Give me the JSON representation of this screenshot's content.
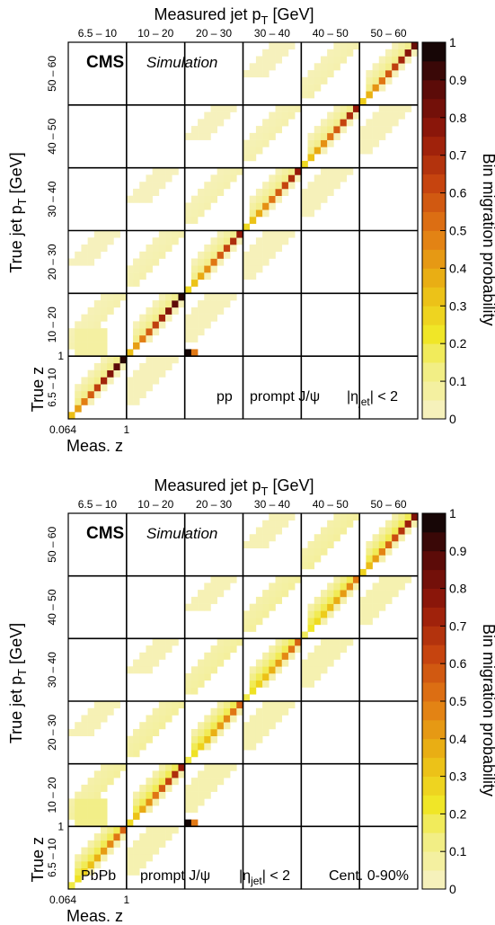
{
  "chart_data": [
    {
      "type": "heatmap",
      "xlabel": "Measured jet p",
      "xlabel_sub": "T",
      "xlabel_unit": " [GeV]",
      "ylabel": "True jet p",
      "ylabel_sub": "T",
      "ylabel_unit": " [GeV]",
      "pt_bins": [
        "6.5 – 10",
        "10 – 20",
        "20 – 30",
        "30 – 40",
        "40 – 50",
        "50 – 60"
      ],
      "z_tick_min": "0.064",
      "z_tick_one": "1",
      "z_tick_one_y": "1",
      "sub_xlabel": "Meas. z",
      "sub_ylabel": "True z",
      "colorbar_label": "Bin migration probability",
      "colorbar_ticks": [
        "0",
        "0.1",
        "0.2",
        "0.3",
        "0.4",
        "0.5",
        "0.6",
        "0.7",
        "0.8",
        "0.9",
        "1"
      ],
      "colorbar_range": [
        0,
        1
      ],
      "cms_label": "CMS",
      "sim_label": "Simulation",
      "legend_collision": "pp",
      "legend_particle": "prompt J/ψ",
      "legend_eta_pre": "|η",
      "legend_eta_sub": "jet",
      "legend_eta_post": "| < 2",
      "legend_centrality": "",
      "peak_values": {
        "6.5 – 10": 0.95,
        "10 – 20": 0.95,
        "20 – 30": 0.75,
        "30 – 40": 0.75,
        "40 – 50": 0.75,
        "50 – 60": 0.85
      },
      "offdiag_level": 0.06
    },
    {
      "type": "heatmap",
      "xlabel": "Measured jet p",
      "xlabel_sub": "T",
      "xlabel_unit": " [GeV]",
      "ylabel": "True jet p",
      "ylabel_sub": "T",
      "ylabel_unit": " [GeV]",
      "pt_bins": [
        "6.5 – 10",
        "10 – 20",
        "20 – 30",
        "30 – 40",
        "40 – 50",
        "50 – 60"
      ],
      "z_tick_min": "0.064",
      "z_tick_one": "1",
      "z_tick_one_y": "1",
      "sub_xlabel": "Meas. z",
      "sub_ylabel": "True z",
      "colorbar_label": "Bin migration probability",
      "colorbar_ticks": [
        "0",
        "0.1",
        "0.2",
        "0.3",
        "0.4",
        "0.5",
        "0.6",
        "0.7",
        "0.8",
        "0.9",
        "1"
      ],
      "colorbar_range": [
        0,
        1
      ],
      "cms_label": "CMS",
      "sim_label": "Simulation",
      "legend_collision": "PbPb",
      "legend_particle": "prompt J/ψ",
      "legend_eta_pre": "|η",
      "legend_eta_sub": "jet",
      "legend_eta_post": "| < 2",
      "legend_centrality": "Cent. 0-90%",
      "peak_values": {
        "6.5 – 10": 0.55,
        "10 – 20": 0.75,
        "20 – 30": 0.55,
        "30 – 40": 0.55,
        "40 – 50": 0.5,
        "50 – 60": 0.8
      },
      "offdiag_level": 0.1
    }
  ]
}
